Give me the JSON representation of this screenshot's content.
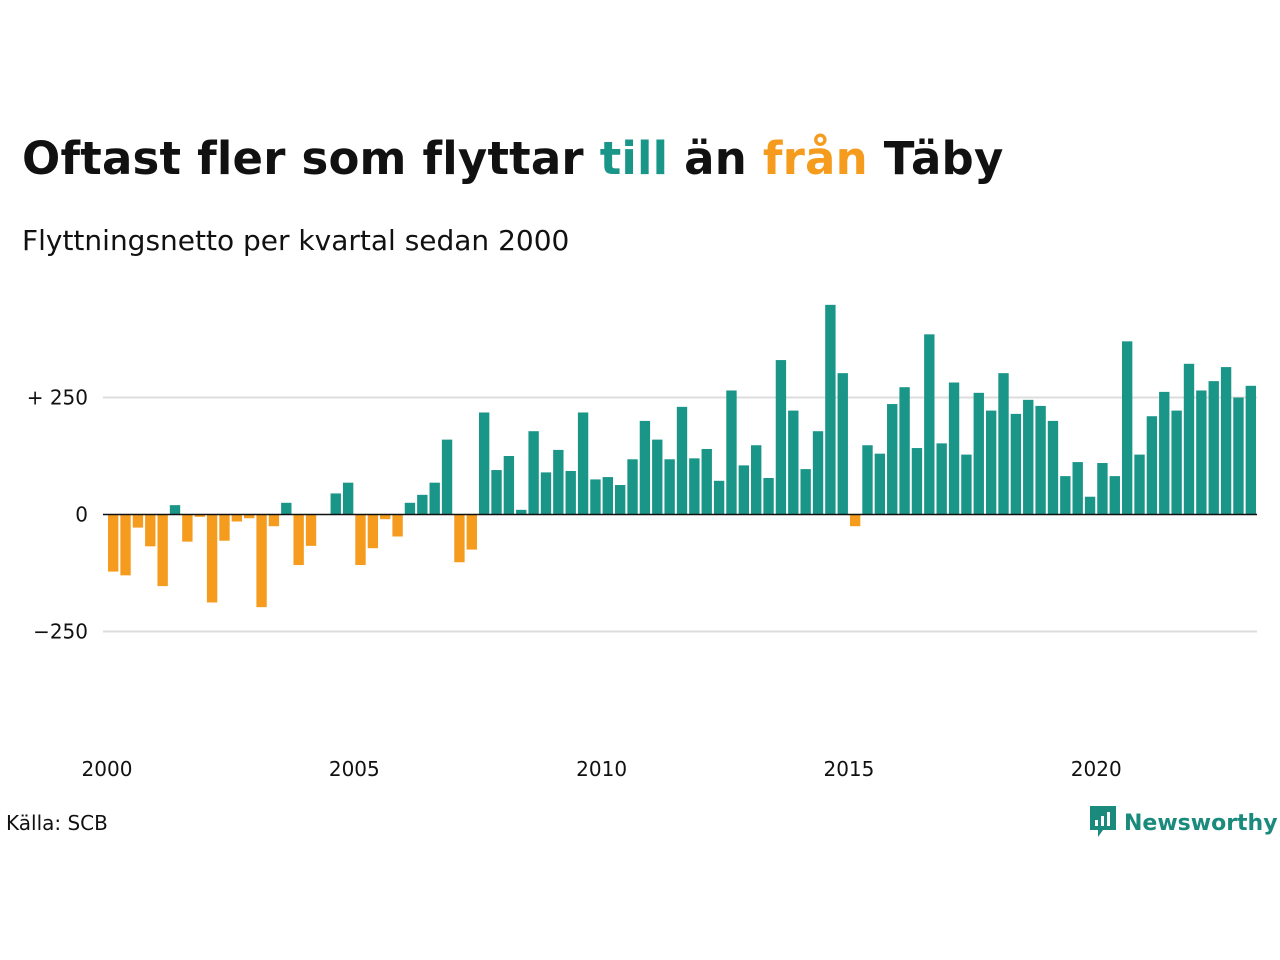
{
  "header": {
    "title_parts": [
      "Oftast fler som flyttar ",
      "till",
      " än ",
      "från",
      " Täby"
    ],
    "subtitle": "Flyttningsnetto per kvartal sedan 2000"
  },
  "colors": {
    "positive": "#1a9688",
    "negative": "#f59c1e",
    "text": "#111111",
    "grid": "#dddddd",
    "logo": "#1a8a7d"
  },
  "footer": {
    "source": "Källa: SCB",
    "logo_text": "Newsworthy",
    "logo_icon": "chart-speech-bubble-icon"
  },
  "chart_data": {
    "type": "bar",
    "title": "Oftast fler som flyttar till än från Täby",
    "subtitle": "Flyttningsnetto per kvartal sedan 2000",
    "x_start": "2000 Q1",
    "x_end": "2023 Q1",
    "x_ticks": [
      "2000",
      "2005",
      "2010",
      "2015",
      "2020"
    ],
    "y_ticks": [
      {
        "value": 250,
        "label": "+ 250"
      },
      {
        "value": 0,
        "label": "0"
      },
      {
        "value": -250,
        "label": "−250"
      }
    ],
    "ylim": [
      -400,
      450
    ],
    "grid": true,
    "values": [
      -122,
      -130,
      -28,
      -68,
      -153,
      20,
      -58,
      -5,
      -188,
      -56,
      -15,
      -8,
      -198,
      -25,
      25,
      -108,
      -67,
      0,
      45,
      68,
      -108,
      -72,
      -10,
      -47,
      25,
      42,
      68,
      160,
      -102,
      -75,
      218,
      95,
      125,
      10,
      178,
      90,
      138,
      93,
      218,
      75,
      80,
      63,
      118,
      200,
      160,
      118,
      230,
      120,
      140,
      72,
      265,
      105,
      148,
      78,
      330,
      222,
      97,
      178,
      448,
      302,
      -25,
      148,
      130,
      236,
      272,
      142,
      385,
      152,
      282,
      128,
      260,
      222,
      302,
      215,
      245,
      232,
      200,
      82,
      112,
      38,
      110,
      82,
      370,
      128,
      210,
      262,
      222,
      322,
      265,
      285,
      315,
      250,
      275
    ]
  }
}
